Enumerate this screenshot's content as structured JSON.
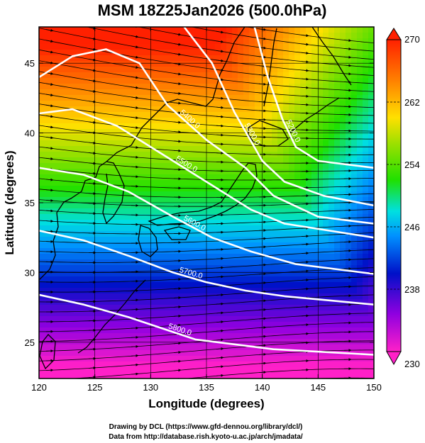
{
  "title": "MSM 18Z25Jan2026 (500.0hPa)",
  "x_axis": {
    "label": "Longitude (degrees)",
    "range": [
      120,
      150
    ],
    "ticks": [
      "120",
      "125",
      "130",
      "135",
      "140",
      "145",
      "150"
    ]
  },
  "y_axis": {
    "label": "Latitude  (degrees)",
    "range": [
      22.4,
      47.6
    ],
    "ticks": [
      "25",
      "30",
      "35",
      "40",
      "45"
    ]
  },
  "colorbar": {
    "range": [
      230,
      270
    ],
    "labels": [
      "270",
      "262",
      "254",
      "246",
      "238",
      "230"
    ]
  },
  "contour_labels": [
    "5200.0",
    "5300.0",
    "5400.0",
    "5500.0",
    "5600.0",
    "5700.0",
    "5800.0"
  ],
  "credits": {
    "line1": "Drawing by DCL (https://www.gfd-dennou.org/library/dcl/)",
    "line2": "Data from http://database.rish.kyoto-u.ac.jp/arch/jmadata/"
  },
  "colors": {
    "cold": "#e000b0",
    "cool": "#0020e0",
    "mid": "#30e000",
    "warm": "#ff2000",
    "contour": "#ffffff",
    "streamline": "#000000"
  },
  "chart_data": {
    "type": "heatmap",
    "field": "temperature",
    "vmin": 230,
    "vmax": 270,
    "grid": true,
    "contours": [
      {
        "label": "5200.0",
        "points": [
          [
            139.3,
            47.6
          ],
          [
            140.5,
            44.0
          ],
          [
            141.8,
            41.0
          ],
          [
            143.0,
            39.0
          ],
          [
            145.0,
            38.0
          ],
          [
            150.0,
            37.5
          ]
        ]
      },
      {
        "label": "5300.0",
        "points": [
          [
            133.0,
            47.6
          ],
          [
            135.5,
            45.0
          ],
          [
            137.5,
            41.5
          ],
          [
            140.0,
            38.0
          ],
          [
            142.0,
            36.5
          ],
          [
            145.5,
            35.5
          ],
          [
            150.0,
            34.8
          ]
        ]
      },
      {
        "label": "5400.0",
        "points": [
          [
            120.0,
            44.0
          ],
          [
            123.0,
            45.5
          ],
          [
            126.0,
            46.0
          ],
          [
            129.0,
            45.0
          ],
          [
            131.5,
            42.0
          ],
          [
            135.0,
            39.5
          ],
          [
            138.5,
            37.5
          ],
          [
            141.0,
            35.5
          ],
          [
            145.0,
            34.0
          ],
          [
            150.0,
            33.5
          ]
        ]
      },
      {
        "label": "5500.0",
        "points": [
          [
            120.0,
            41.4
          ],
          [
            123.0,
            41.7
          ],
          [
            127.0,
            40.5
          ],
          [
            131.0,
            38.5
          ],
          [
            135.0,
            36.5
          ],
          [
            139.0,
            34.5
          ],
          [
            142.0,
            33.5
          ],
          [
            146.0,
            33.0
          ],
          [
            150.0,
            32.5
          ]
        ]
      },
      {
        "label": "5600.0",
        "points": [
          [
            120.0,
            37.5
          ],
          [
            124.0,
            37.0
          ],
          [
            128.0,
            35.8
          ],
          [
            132.0,
            34.0
          ],
          [
            135.5,
            32.5
          ],
          [
            139.0,
            31.5
          ],
          [
            143.0,
            30.6
          ],
          [
            147.0,
            30.2
          ],
          [
            150.0,
            29.9
          ]
        ]
      },
      {
        "label": "5700.0",
        "points": [
          [
            120.0,
            33.0
          ],
          [
            124.0,
            32.3
          ],
          [
            128.0,
            31.2
          ],
          [
            132.0,
            30.0
          ],
          [
            135.0,
            29.3
          ],
          [
            138.5,
            28.7
          ],
          [
            142.0,
            28.3
          ],
          [
            146.0,
            28.0
          ],
          [
            150.0,
            27.7
          ]
        ]
      },
      {
        "label": "5800.0",
        "points": [
          [
            120.0,
            28.4
          ],
          [
            124.0,
            27.7
          ],
          [
            128.0,
            26.8
          ],
          [
            131.0,
            26.0
          ],
          [
            134.0,
            25.2
          ],
          [
            137.0,
            24.9
          ],
          [
            141.0,
            24.5
          ],
          [
            145.5,
            24.3
          ],
          [
            150.0,
            24.1
          ]
        ]
      }
    ]
  }
}
